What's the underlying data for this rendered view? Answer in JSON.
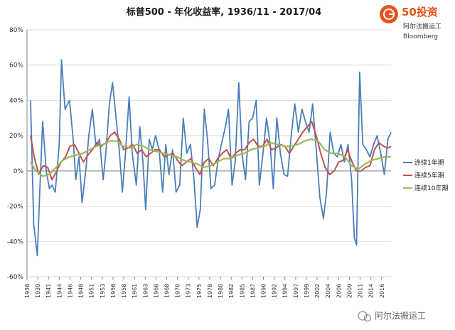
{
  "chart_data": {
    "type": "line",
    "title": "标普500 - 年化收益率, 1936/11 - 2017/04",
    "xlabel": "",
    "ylabel": "",
    "ylim": [
      -60,
      80
    ],
    "yticks": [
      "80%",
      "60%",
      "40%",
      "20%",
      "0%",
      "-20%",
      "-40%",
      "-60%"
    ],
    "ytick_values": [
      80,
      60,
      40,
      20,
      0,
      -20,
      -40,
      -60
    ],
    "xlim": [
      1936,
      2017.3
    ],
    "xticks": [
      "1936",
      "1939",
      "1941",
      "1944",
      "1946",
      "1948",
      "1951",
      "1953",
      "1956",
      "1958",
      "1961",
      "1963",
      "1966",
      "1968",
      "1970",
      "1973",
      "1975",
      "1978",
      "1980",
      "1982",
      "1985",
      "1987",
      "1990",
      "1992",
      "1994",
      "1997",
      "1999",
      "2002",
      "2004",
      "2006",
      "2009",
      "2011",
      "2014",
      "2016"
    ],
    "xtick_values": [
      1936,
      1938.4,
      1940.8,
      1943.2,
      1945.6,
      1948,
      1950.4,
      1952.8,
      1955.2,
      1957.6,
      1960,
      1962.4,
      1964.8,
      1967.2,
      1969.6,
      1972,
      1974.4,
      1976.8,
      1979.2,
      1981.6,
      1984,
      1986.4,
      1988.8,
      1991.2,
      1993.6,
      1996,
      1998.4,
      2000.8,
      2003.2,
      2005.6,
      2008,
      2010.4,
      2012.8,
      2015.2
    ],
    "legend_position": "right",
    "series": [
      {
        "name": "连续1年期",
        "color": "#4a7ebb",
        "x": [
          1936.8,
          1937.5,
          1938.3,
          1938.8,
          1939.5,
          1940.3,
          1941,
          1941.6,
          1942.3,
          1943.2,
          1943.7,
          1944.5,
          1945.5,
          1946.3,
          1946.9,
          1947.6,
          1948.3,
          1949.2,
          1949.8,
          1950.6,
          1951.4,
          1952.2,
          1953,
          1953.6,
          1954.4,
          1955.1,
          1955.9,
          1956.6,
          1957.3,
          1958,
          1958.8,
          1959.5,
          1960.4,
          1961.2,
          1961.9,
          1962.5,
          1963.3,
          1964,
          1964.7,
          1965.5,
          1966.3,
          1967,
          1967.7,
          1968.5,
          1969.3,
          1970.1,
          1970.9,
          1971.7,
          1972.5,
          1973.3,
          1974,
          1974.7,
          1975.6,
          1976.3,
          1977.1,
          1977.9,
          1978.6,
          1979.4,
          1980.3,
          1981,
          1981.8,
          1982.5,
          1983.3,
          1984,
          1984.8,
          1985.6,
          1986.4,
          1987.2,
          1987.9,
          1988.7,
          1989.5,
          1990.3,
          1991,
          1991.8,
          1992.6,
          1993.4,
          1994.2,
          1995,
          1995.8,
          1996.6,
          1997.4,
          1998.2,
          1999,
          1999.8,
          2000.6,
          2001.4,
          2002.2,
          2002.9,
          2003.7,
          2004.5,
          2005.3,
          2006.1,
          2006.9,
          2007.7,
          2008.5,
          2009.1,
          2009.6,
          2010.3,
          2011,
          2011.8,
          2012.6,
          2013.4,
          2014.2,
          2015,
          2015.8,
          2016.6,
          2017.3
        ],
        "values": [
          40,
          -30,
          -48,
          -15,
          28,
          0,
          -10,
          -8,
          -12,
          15,
          63,
          35,
          40,
          18,
          -5,
          8,
          -18,
          2,
          20,
          35,
          14,
          18,
          -5,
          10,
          38,
          50,
          30,
          12,
          -12,
          10,
          42,
          10,
          -8,
          25,
          5,
          -22,
          18,
          12,
          20,
          12,
          -12,
          15,
          -2,
          12,
          -12,
          -8,
          30,
          10,
          15,
          -5,
          -32,
          -22,
          35,
          18,
          -10,
          -8,
          5,
          15,
          25,
          35,
          -8,
          5,
          50,
          10,
          -5,
          28,
          30,
          40,
          -8,
          10,
          30,
          15,
          -10,
          30,
          10,
          -2,
          -3,
          20,
          38,
          22,
          35,
          28,
          22,
          38,
          12,
          -15,
          -27,
          -12,
          22,
          10,
          8,
          15,
          5,
          15,
          -5,
          -38,
          -42,
          56,
          15,
          12,
          8,
          15,
          20,
          10,
          -2,
          18,
          22
        ]
      },
      {
        "name": "连续5年期",
        "color": "#c0504d",
        "x": [
          1936.8,
          1937.6,
          1938.6,
          1939.6,
          1940.6,
          1941.6,
          1942.6,
          1943.6,
          1944.6,
          1945.6,
          1946.6,
          1947.6,
          1948.6,
          1949.6,
          1950.6,
          1951.6,
          1952.6,
          1953.6,
          1954.6,
          1955.6,
          1956.6,
          1957.6,
          1958.6,
          1959.6,
          1960.6,
          1961.6,
          1962.6,
          1963.6,
          1964.6,
          1965.6,
          1966.6,
          1967.6,
          1968.6,
          1969.6,
          1970.6,
          1971.6,
          1972.6,
          1973.6,
          1974.6,
          1975.6,
          1976.6,
          1977.6,
          1978.6,
          1979.6,
          1980.6,
          1981.6,
          1982.6,
          1983.6,
          1984.6,
          1985.6,
          1986.6,
          1987.6,
          1988.6,
          1989.6,
          1990.6,
          1991.6,
          1992.6,
          1993.6,
          1994.6,
          1995.6,
          1996.6,
          1997.6,
          1998.6,
          1999.6,
          2000.6,
          2001.6,
          2002.6,
          2003.6,
          2004.6,
          2005.6,
          2006.6,
          2007.6,
          2008.6,
          2009.6,
          2010.6,
          2011.6,
          2012.6,
          2013.6,
          2014.6,
          2015.6,
          2016.6,
          2017.3
        ],
        "values": [
          20,
          8,
          -2,
          3,
          2,
          -5,
          0,
          5,
          8,
          14,
          15,
          10,
          5,
          9,
          12,
          16,
          14,
          16,
          20,
          22,
          18,
          12,
          13,
          15,
          10,
          12,
          8,
          10,
          12,
          12,
          8,
          9,
          10,
          6,
          3,
          5,
          7,
          2,
          -2,
          5,
          7,
          3,
          7,
          10,
          12,
          7,
          10,
          12,
          12,
          16,
          18,
          14,
          14,
          18,
          12,
          13,
          15,
          14,
          10,
          14,
          18,
          22,
          25,
          28,
          20,
          10,
          2,
          -2,
          0,
          5,
          6,
          12,
          5,
          0,
          0,
          2,
          3,
          12,
          16,
          14,
          13,
          14
        ]
      },
      {
        "name": "连续10年期",
        "color": "#9bbb59",
        "x": [
          1936.8,
          1938,
          1939.5,
          1941,
          1942.5,
          1944,
          1945.5,
          1947,
          1948.5,
          1950,
          1951.5,
          1953,
          1954.5,
          1956,
          1957.5,
          1959,
          1960.5,
          1962,
          1963.5,
          1965,
          1966.5,
          1968,
          1969.5,
          1971,
          1972.5,
          1974,
          1975.5,
          1977,
          1978.5,
          1980,
          1981.5,
          1983,
          1984.5,
          1986,
          1987.5,
          1989,
          1990.5,
          1992,
          1993.5,
          1995,
          1996.5,
          1998,
          1999.5,
          2001,
          2002.5,
          2004,
          2005.5,
          2007,
          2008.5,
          2010,
          2011.5,
          2013,
          2014.5,
          2016,
          2017.3
        ],
        "values": [
          5,
          0,
          -3,
          -2,
          2,
          6,
          8,
          9,
          10,
          12,
          14,
          15,
          17,
          17,
          14,
          13,
          15,
          14,
          12,
          11,
          10,
          9,
          8,
          6,
          5,
          4,
          2,
          3,
          5,
          7,
          7,
          9,
          10,
          12,
          13,
          14,
          16,
          15,
          14,
          14,
          15,
          17,
          18,
          17,
          12,
          10,
          10,
          8,
          3,
          1,
          4,
          6,
          7,
          8,
          8
        ]
      }
    ]
  },
  "legend": {
    "items": [
      "连续1年期",
      "连续5年期",
      "连续10年期"
    ]
  },
  "source": {
    "line1": "阿尔法搬运工",
    "line2": "Bloomberg"
  },
  "logo": {
    "text": "50投资",
    "caption": "阿尔法搬运工"
  },
  "watermark": {
    "text": "阿尔法搬运工"
  },
  "colors": {
    "logo": "#e8541e",
    "axis": "#868686"
  }
}
